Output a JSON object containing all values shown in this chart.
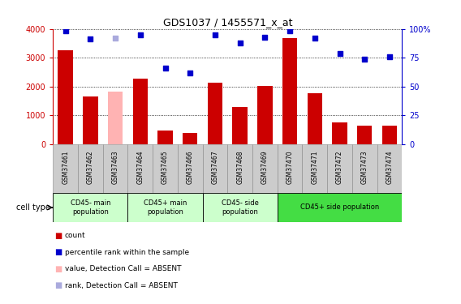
{
  "title": "GDS1037 / 1455571_x_at",
  "samples": [
    "GSM37461",
    "GSM37462",
    "GSM37463",
    "GSM37464",
    "GSM37465",
    "GSM37466",
    "GSM37467",
    "GSM37468",
    "GSM37469",
    "GSM37470",
    "GSM37471",
    "GSM37472",
    "GSM37473",
    "GSM37474"
  ],
  "bar_values": [
    3250,
    1650,
    1820,
    2280,
    490,
    390,
    2130,
    1300,
    2020,
    3680,
    1780,
    760,
    640,
    650
  ],
  "bar_absent": [
    false,
    false,
    true,
    false,
    false,
    false,
    false,
    false,
    false,
    false,
    false,
    false,
    false,
    false
  ],
  "rank_values": [
    98,
    91,
    92,
    95,
    66,
    62,
    95,
    88,
    93,
    98,
    92,
    79,
    74,
    76
  ],
  "rank_absent": [
    false,
    false,
    true,
    false,
    false,
    false,
    false,
    false,
    false,
    false,
    false,
    false,
    false,
    false
  ],
  "bar_color": "#cc0000",
  "bar_absent_color": "#ffb3b3",
  "rank_color": "#0000cc",
  "rank_absent_color": "#aaaadd",
  "ylim_left": [
    0,
    4000
  ],
  "ylim_right": [
    0,
    100
  ],
  "yticks_left": [
    0,
    1000,
    2000,
    3000,
    4000
  ],
  "yticks_right": [
    0,
    25,
    50,
    75,
    100
  ],
  "ytick_labels_right": [
    "0",
    "25",
    "50",
    "75",
    "100%"
  ],
  "cell_groups": [
    {
      "label": "CD45- main\npopulation",
      "start": 0,
      "end": 2,
      "color": "#ccffcc"
    },
    {
      "label": "CD45+ main\npopulation",
      "start": 3,
      "end": 5,
      "color": "#ccffcc"
    },
    {
      "label": "CD45- side\npopulation",
      "start": 6,
      "end": 8,
      "color": "#ccffcc"
    },
    {
      "label": "CD45+ side population",
      "start": 9,
      "end": 13,
      "color": "#44dd44"
    }
  ],
  "legend_items": [
    {
      "color": "#cc0000",
      "label": "count"
    },
    {
      "color": "#0000cc",
      "label": "percentile rank within the sample"
    },
    {
      "color": "#ffb3b3",
      "label": "value, Detection Call = ABSENT"
    },
    {
      "color": "#aaaadd",
      "label": "rank, Detection Call = ABSENT"
    }
  ],
  "cell_type_label": "cell type",
  "background_color": "#ffffff",
  "sample_box_color": "#cccccc",
  "n_samples": 14
}
